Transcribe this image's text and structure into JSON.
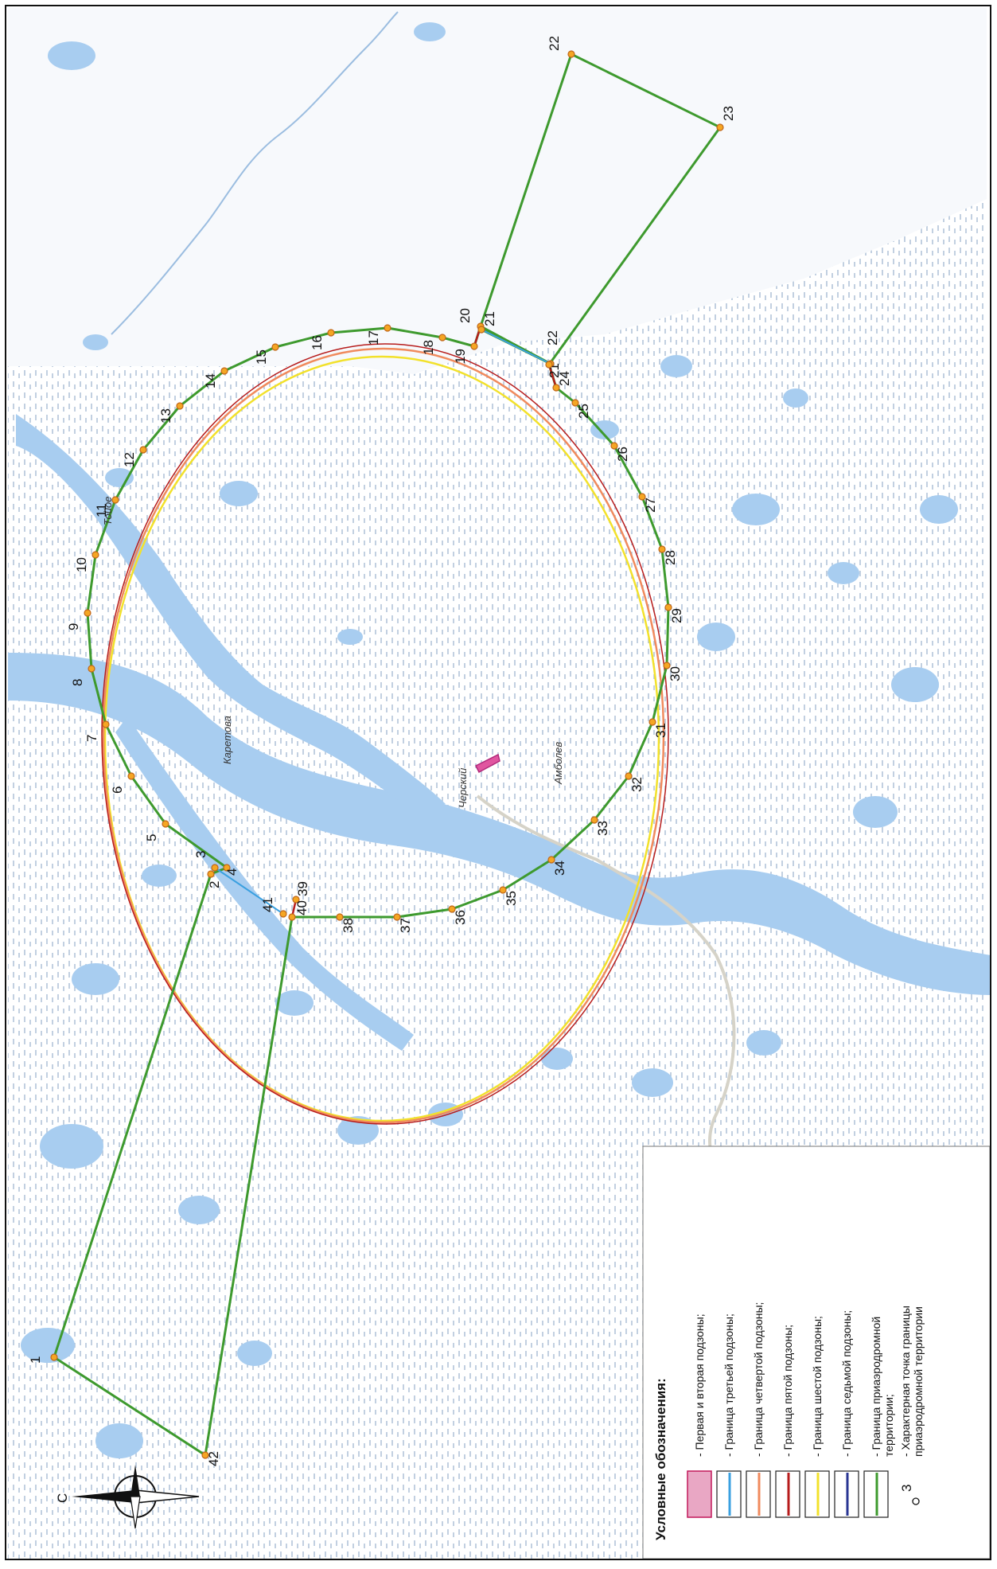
{
  "map": {
    "north_label": "С",
    "place_labels": [
      {
        "id": "chersky",
        "text": "Черский"
      },
      {
        "id": "karetova",
        "text": "Каретова"
      },
      {
        "id": "tohoe",
        "text": "Тойое"
      },
      {
        "id": "ambolikha",
        "text": "Амболев"
      }
    ],
    "points": [
      {
        "n": "1"
      },
      {
        "n": "2"
      },
      {
        "n": "3"
      },
      {
        "n": "4"
      },
      {
        "n": "5"
      },
      {
        "n": "6"
      },
      {
        "n": "7"
      },
      {
        "n": "8"
      },
      {
        "n": "9"
      },
      {
        "n": "10"
      },
      {
        "n": "11"
      },
      {
        "n": "12"
      },
      {
        "n": "13"
      },
      {
        "n": "14"
      },
      {
        "n": "15"
      },
      {
        "n": "16"
      },
      {
        "n": "17"
      },
      {
        "n": "18"
      },
      {
        "n": "19"
      },
      {
        "n": "20"
      },
      {
        "n": "21"
      },
      {
        "n": "21"
      },
      {
        "n": "22"
      },
      {
        "n": "22"
      },
      {
        "n": "23"
      },
      {
        "n": "24"
      },
      {
        "n": "25"
      },
      {
        "n": "26"
      },
      {
        "n": "27"
      },
      {
        "n": "28"
      },
      {
        "n": "29"
      },
      {
        "n": "30"
      },
      {
        "n": "31"
      },
      {
        "n": "32"
      },
      {
        "n": "33"
      },
      {
        "n": "34"
      },
      {
        "n": "35"
      },
      {
        "n": "36"
      },
      {
        "n": "37"
      },
      {
        "n": "38"
      },
      {
        "n": "39"
      },
      {
        "n": "40"
      },
      {
        "n": "41"
      },
      {
        "n": "42"
      }
    ]
  },
  "legend": {
    "title": "Условные обозначения:",
    "items": [
      {
        "text": "- Первая и вторая подзоны;",
        "color": "#e9a7c4",
        "border": "#c2185b",
        "kind": "fill"
      },
      {
        "text": "- Граница третьей подзоны;",
        "color": "#3aa0e0",
        "kind": "line"
      },
      {
        "text": "- Граница четвертой подзоны;",
        "color": "#f08a5d",
        "kind": "line"
      },
      {
        "text": "- Граница пятой подзоны;",
        "color": "#b71c1c",
        "kind": "line"
      },
      {
        "text": "- Граница шестой подзоны;",
        "color": "#f2e12b",
        "kind": "line"
      },
      {
        "text": "- Граница седьмой подзоны;",
        "color": "#283593",
        "kind": "line"
      },
      {
        "text": "- Граница приаэродромной",
        "text2": "территории;",
        "color": "#3e9a2e",
        "kind": "line"
      },
      {
        "text": "- Характерная точка границы",
        "text2": "приаэродромной территории",
        "kind": "point",
        "sample_label": "3"
      }
    ]
  },
  "colors": {
    "water": "#a8cdf0",
    "water_dark": "#7fb3e6",
    "marsh_dash": "#9db5cf",
    "green_boundary": "#3e9a2e",
    "orange": "#f08a5d",
    "yellow": "#f2e12b",
    "red": "#b71c1c",
    "blue": "#3aa0e0",
    "point_fill": "#f5a623"
  }
}
